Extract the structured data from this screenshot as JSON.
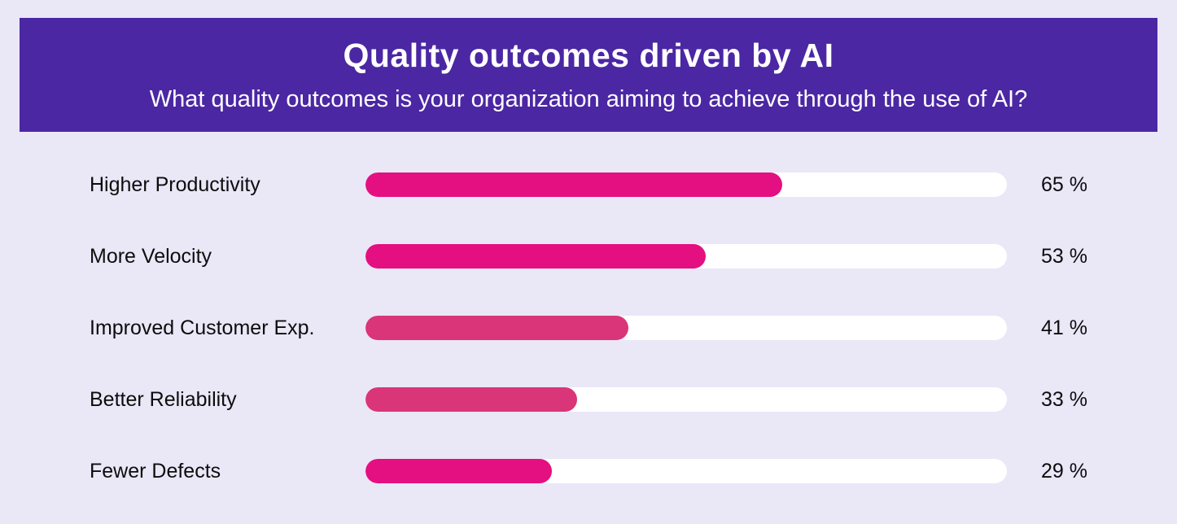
{
  "colors": {
    "page_background": "#EAE7F7",
    "header_background": "#4B27A3",
    "header_text": "#FFFFFF",
    "bar_track": "#FFFFFF",
    "bar_bright_pink": "#E40F80",
    "bar_muted_pink": "#D93578",
    "label_text": "#0D0D0D"
  },
  "header": {
    "title": "Quality outcomes driven by AI",
    "subtitle": "What quality outcomes is your organization aiming to achieve through the use of AI?"
  },
  "chart_data": {
    "type": "bar",
    "orientation": "horizontal",
    "title": "Quality outcomes driven by AI",
    "subtitle": "What quality outcomes is your organization aiming to achieve through the use of AI?",
    "categories": [
      "Higher Productivity",
      "More Velocity",
      "Improved Customer Exp.",
      "Better Reliability",
      "Fewer Defects"
    ],
    "values": [
      65,
      53,
      41,
      33,
      29
    ],
    "value_labels": [
      "65 %",
      "53 %",
      "41 %",
      "33 %",
      "29 %"
    ],
    "bar_colors": [
      "#E40F80",
      "#E40F80",
      "#D93578",
      "#D93578",
      "#E40F80"
    ],
    "xlim": [
      0,
      100
    ],
    "grid": false,
    "legend": false,
    "value_label_position": "right-of-track"
  }
}
